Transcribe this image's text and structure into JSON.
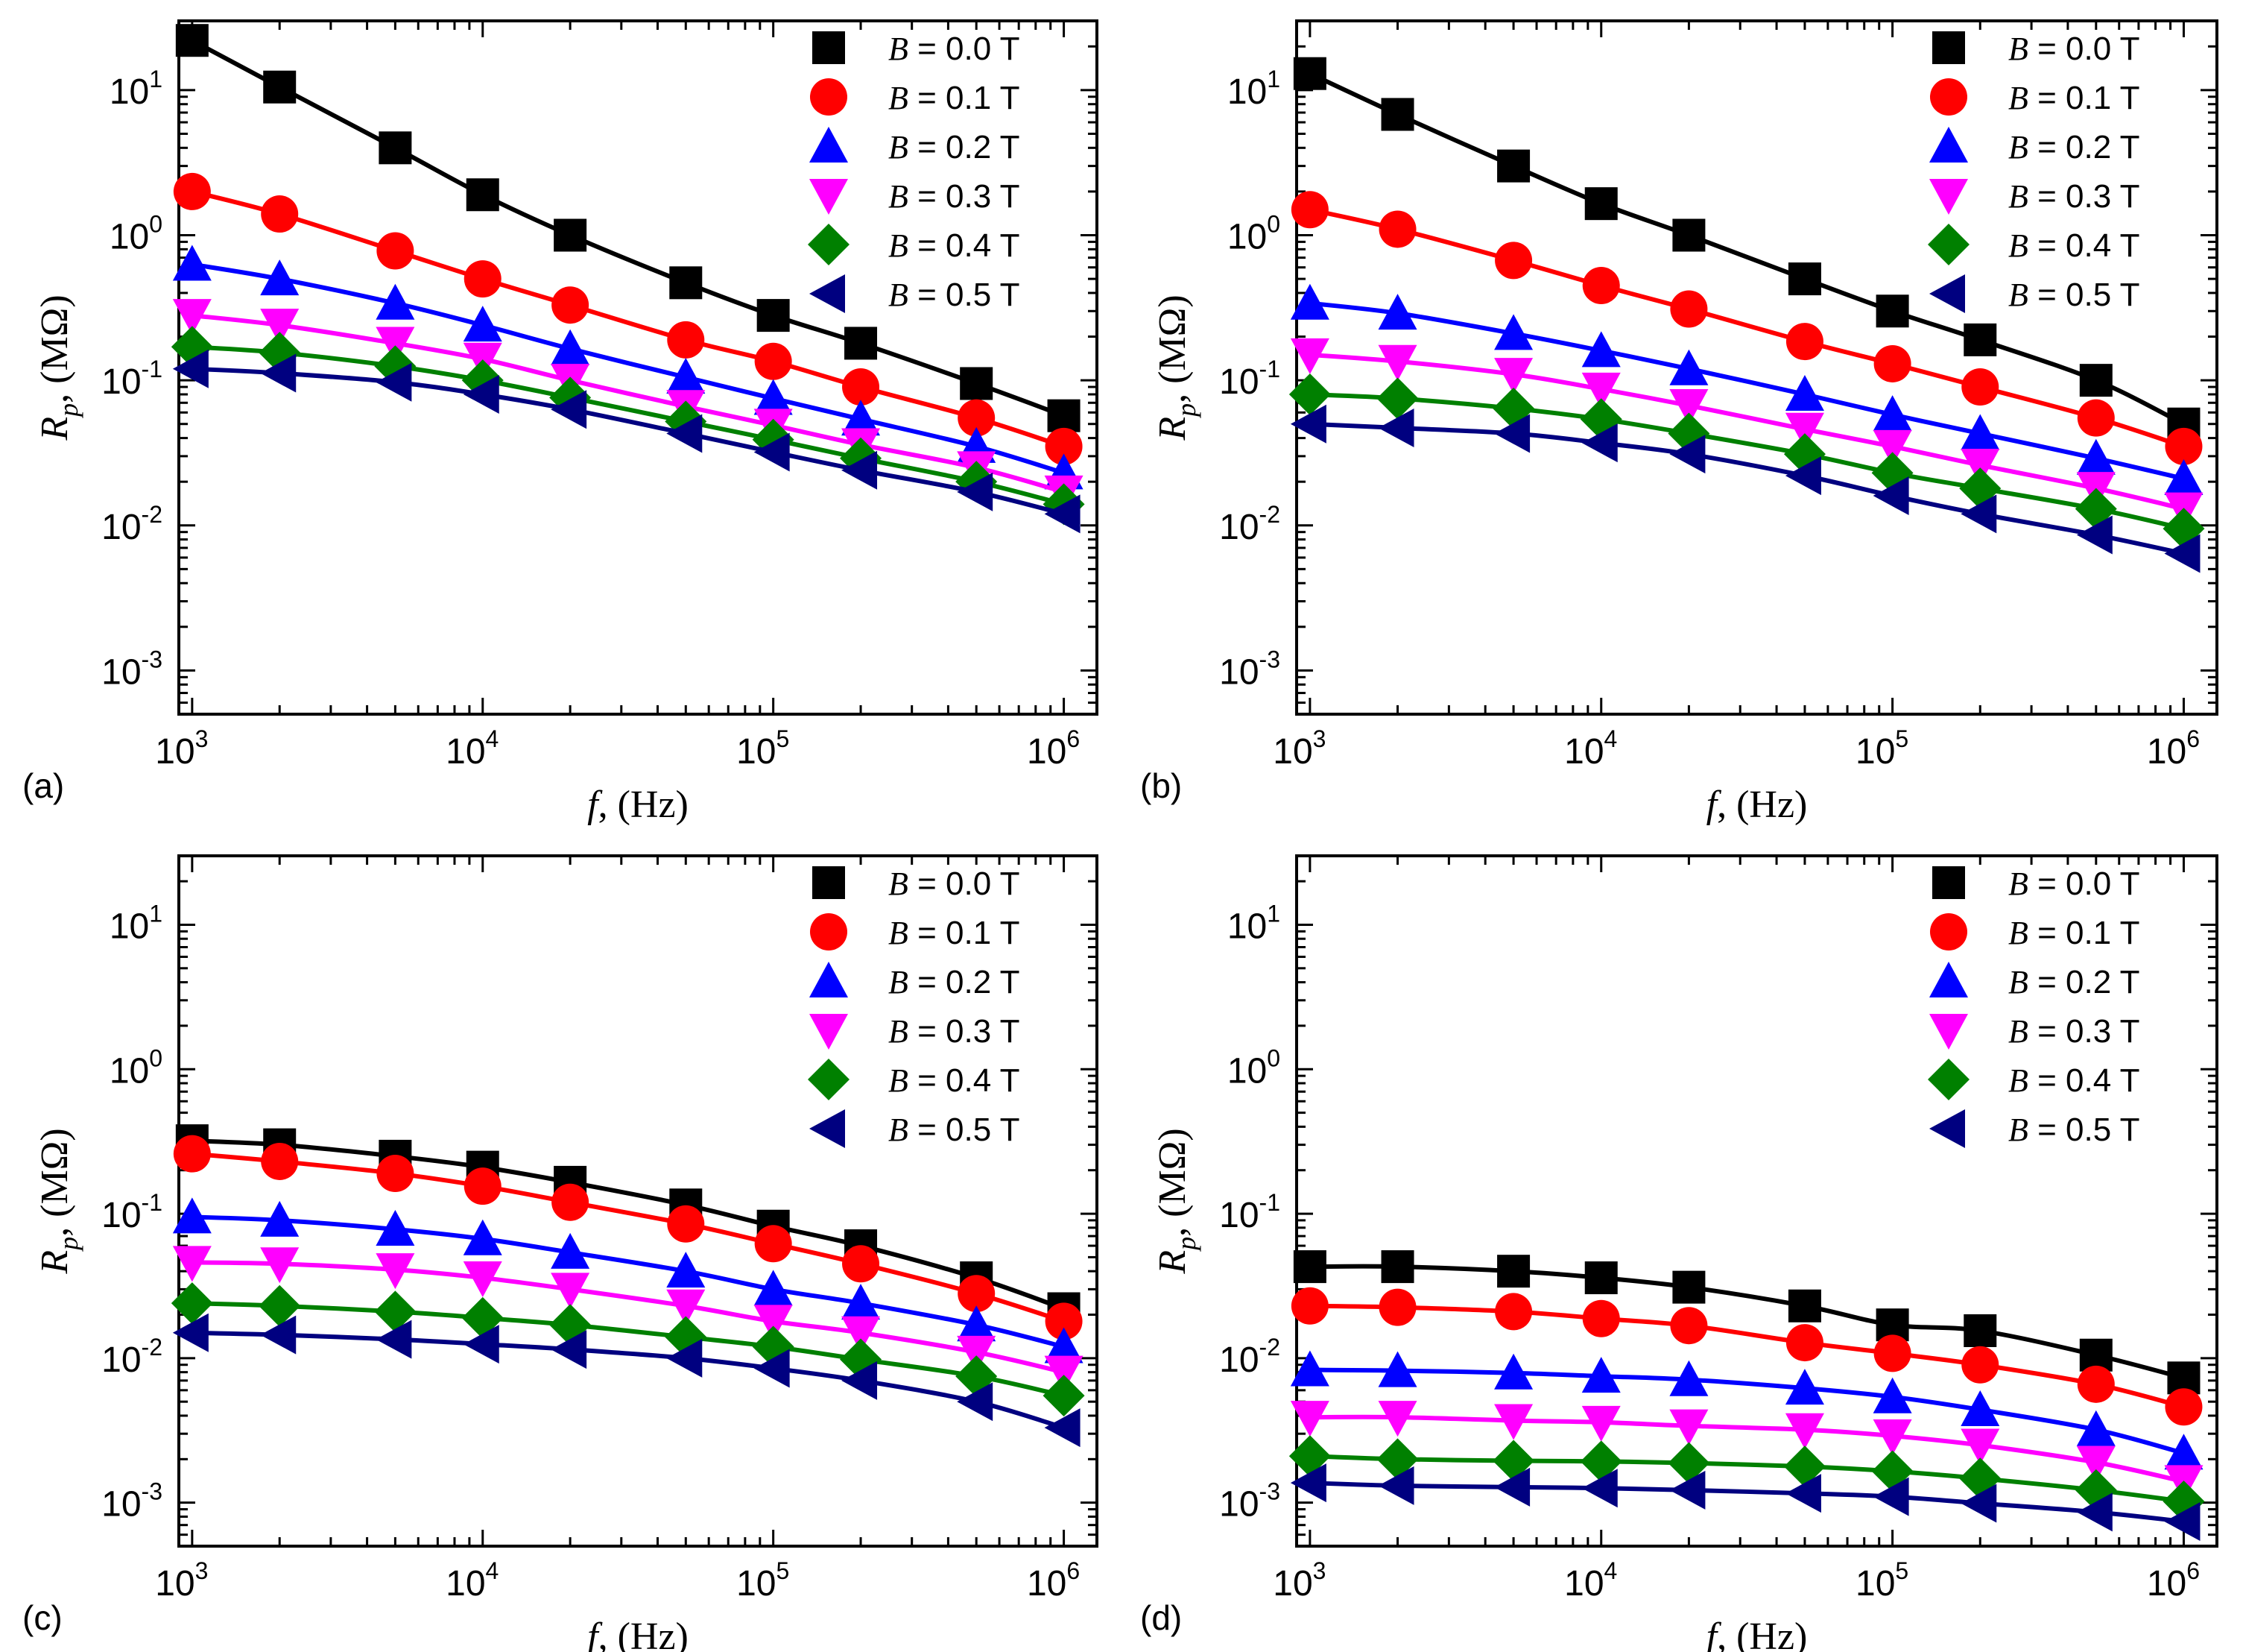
{
  "chart_data": [
    {
      "type": "line",
      "panel_label": "(a)",
      "xlabel_symbol": "f",
      "xlabel_unit": ", (Hz)",
      "ylabel_symbol": "R",
      "ylabel_sub": "p",
      "ylabel_unit": ", (MΩ)",
      "x_scale": "log",
      "y_scale": "log",
      "xlim": [
        900,
        1300000
      ],
      "ylim": [
        0.0005,
        30
      ],
      "x_ticks": [
        {
          "base": "10",
          "exp": "3"
        },
        {
          "base": "10",
          "exp": "4"
        },
        {
          "base": "10",
          "exp": "5"
        },
        {
          "base": "10",
          "exp": "6"
        }
      ],
      "y_ticks": [
        {
          "base": "10",
          "exp": "-3"
        },
        {
          "base": "10",
          "exp": "-2"
        },
        {
          "base": "10",
          "exp": "-1"
        },
        {
          "base": "10",
          "exp": "0"
        },
        {
          "base": "10",
          "exp": "1"
        }
      ],
      "legend_position": "top-right",
      "x": [
        1000,
        2000,
        5000,
        10000,
        20000,
        50000,
        100000,
        200000,
        500000,
        1000000
      ],
      "series": [
        {
          "name": "B = 0.0 T",
          "b_symbol": "B",
          "b_value": " = 0.0 T",
          "marker": "square",
          "color": "#000000",
          "values": [
            22,
            10.5,
            4.0,
            1.9,
            1.0,
            0.47,
            0.28,
            0.18,
            0.095,
            0.057
          ]
        },
        {
          "name": "B = 0.1 T",
          "b_symbol": "B",
          "b_value": " = 0.1 T",
          "marker": "circle",
          "color": "#ff0000",
          "values": [
            2.0,
            1.4,
            0.78,
            0.5,
            0.33,
            0.19,
            0.135,
            0.09,
            0.055,
            0.035
          ]
        },
        {
          "name": "B = 0.2 T",
          "b_symbol": "B",
          "b_value": " = 0.2 T",
          "marker": "triangle-up",
          "color": "#0000ff",
          "values": [
            0.63,
            0.5,
            0.34,
            0.24,
            0.165,
            0.105,
            0.075,
            0.054,
            0.035,
            0.023
          ]
        },
        {
          "name": "B = 0.3 T",
          "b_symbol": "B",
          "b_value": " = 0.3 T",
          "marker": "triangle-down",
          "color": "#ff00ff",
          "values": [
            0.28,
            0.24,
            0.18,
            0.14,
            0.1,
            0.066,
            0.049,
            0.036,
            0.025,
            0.017
          ]
        },
        {
          "name": "B = 0.4 T",
          "b_symbol": "B",
          "b_value": " = 0.4 T",
          "marker": "diamond",
          "color": "#008000",
          "values": [
            0.17,
            0.155,
            0.125,
            0.1,
            0.076,
            0.052,
            0.039,
            0.029,
            0.02,
            0.014
          ]
        },
        {
          "name": "B = 0.5 T",
          "b_symbol": "B",
          "b_value": " = 0.5 T",
          "marker": "triangle-left",
          "color": "#000080",
          "values": [
            0.12,
            0.112,
            0.097,
            0.08,
            0.063,
            0.043,
            0.032,
            0.024,
            0.017,
            0.012
          ]
        }
      ]
    },
    {
      "type": "line",
      "panel_label": "(b)",
      "xlabel_symbol": "f",
      "xlabel_unit": ", (Hz)",
      "ylabel_symbol": "R",
      "ylabel_sub": "p",
      "ylabel_unit": ", (MΩ)",
      "x_scale": "log",
      "y_scale": "log",
      "xlim": [
        900,
        1300000
      ],
      "ylim": [
        0.0005,
        30
      ],
      "x_ticks": [
        {
          "base": "10",
          "exp": "3"
        },
        {
          "base": "10",
          "exp": "4"
        },
        {
          "base": "10",
          "exp": "5"
        },
        {
          "base": "10",
          "exp": "6"
        }
      ],
      "y_ticks": [
        {
          "base": "10",
          "exp": "-3"
        },
        {
          "base": "10",
          "exp": "-2"
        },
        {
          "base": "10",
          "exp": "-1"
        },
        {
          "base": "10",
          "exp": "0"
        },
        {
          "base": "10",
          "exp": "1"
        }
      ],
      "legend_position": "top-right",
      "x": [
        1000,
        2000,
        5000,
        10000,
        20000,
        50000,
        100000,
        200000,
        500000,
        1000000
      ],
      "series": [
        {
          "name": "B = 0.0 T",
          "b_symbol": "B",
          "b_value": " = 0.0 T",
          "marker": "square",
          "color": "#000000",
          "values": [
            13,
            6.8,
            3.0,
            1.65,
            1.0,
            0.5,
            0.3,
            0.19,
            0.1,
            0.05
          ]
        },
        {
          "name": "B = 0.1 T",
          "b_symbol": "B",
          "b_value": " = 0.1 T",
          "marker": "circle",
          "color": "#ff0000",
          "values": [
            1.5,
            1.1,
            0.67,
            0.45,
            0.31,
            0.185,
            0.13,
            0.09,
            0.055,
            0.035
          ]
        },
        {
          "name": "B = 0.2 T",
          "b_symbol": "B",
          "b_value": " = 0.2 T",
          "marker": "triangle-up",
          "color": "#0000ff",
          "values": [
            0.34,
            0.29,
            0.21,
            0.16,
            0.12,
            0.08,
            0.058,
            0.043,
            0.029,
            0.021
          ]
        },
        {
          "name": "B = 0.3 T",
          "b_symbol": "B",
          "b_value": " = 0.3 T",
          "marker": "triangle-down",
          "color": "#ff00ff",
          "values": [
            0.15,
            0.135,
            0.11,
            0.087,
            0.067,
            0.046,
            0.035,
            0.026,
            0.018,
            0.013
          ]
        },
        {
          "name": "B = 0.4 T",
          "b_symbol": "B",
          "b_value": " = 0.4 T",
          "marker": "diamond",
          "color": "#008000",
          "values": [
            0.08,
            0.075,
            0.064,
            0.054,
            0.043,
            0.031,
            0.023,
            0.018,
            0.013,
            0.0095
          ]
        },
        {
          "name": "B = 0.5 T",
          "b_symbol": "B",
          "b_value": " = 0.5 T",
          "marker": "triangle-left",
          "color": "#000080",
          "values": [
            0.05,
            0.047,
            0.043,
            0.037,
            0.031,
            0.022,
            0.016,
            0.012,
            0.0086,
            0.0064
          ]
        }
      ]
    },
    {
      "type": "line",
      "panel_label": "(c)",
      "xlabel_symbol": "f",
      "xlabel_unit": ", (Hz)",
      "ylabel_symbol": "R",
      "ylabel_sub": "p",
      "ylabel_unit": ", (MΩ)",
      "x_scale": "log",
      "y_scale": "log",
      "xlim": [
        900,
        1300000
      ],
      "ylim": [
        0.0005,
        30
      ],
      "x_ticks": [
        {
          "base": "10",
          "exp": "3"
        },
        {
          "base": "10",
          "exp": "4"
        },
        {
          "base": "10",
          "exp": "5"
        },
        {
          "base": "10",
          "exp": "6"
        }
      ],
      "y_ticks": [
        {
          "base": "10",
          "exp": "-3"
        },
        {
          "base": "10",
          "exp": "-2"
        },
        {
          "base": "10",
          "exp": "-1"
        },
        {
          "base": "10",
          "exp": "0"
        },
        {
          "base": "10",
          "exp": "1"
        }
      ],
      "legend_position": "top-right",
      "x": [
        1000,
        2000,
        5000,
        10000,
        20000,
        50000,
        100000,
        200000,
        500000,
        1000000
      ],
      "series": [
        {
          "name": "B = 0.0 T",
          "b_symbol": "B",
          "b_value": " = 0.0 T",
          "marker": "square",
          "color": "#000000",
          "values": [
            0.32,
            0.3,
            0.25,
            0.21,
            0.165,
            0.115,
            0.082,
            0.06,
            0.036,
            0.022
          ]
        },
        {
          "name": "B = 0.1 T",
          "b_symbol": "B",
          "b_value": " = 0.1 T",
          "marker": "circle",
          "color": "#ff0000",
          "values": [
            0.26,
            0.23,
            0.19,
            0.155,
            0.12,
            0.085,
            0.062,
            0.045,
            0.028,
            0.018
          ]
        },
        {
          "name": "B = 0.2 T",
          "b_symbol": "B",
          "b_value": " = 0.2 T",
          "marker": "triangle-up",
          "color": "#0000ff",
          "values": [
            0.095,
            0.09,
            0.078,
            0.067,
            0.054,
            0.04,
            0.03,
            0.024,
            0.017,
            0.012
          ]
        },
        {
          "name": "B = 0.3 T",
          "b_symbol": "B",
          "b_value": " = 0.3 T",
          "marker": "triangle-down",
          "color": "#ff00ff",
          "values": [
            0.046,
            0.045,
            0.041,
            0.036,
            0.03,
            0.023,
            0.018,
            0.015,
            0.011,
            0.008
          ]
        },
        {
          "name": "B = 0.4 T",
          "b_symbol": "B",
          "b_value": " = 0.4 T",
          "marker": "diamond",
          "color": "#008000",
          "values": [
            0.024,
            0.023,
            0.021,
            0.019,
            0.017,
            0.014,
            0.012,
            0.0098,
            0.0075,
            0.0055
          ]
        },
        {
          "name": "B = 0.5 T",
          "b_symbol": "B",
          "b_value": " = 0.5 T",
          "marker": "triangle-left",
          "color": "#000080",
          "values": [
            0.015,
            0.0145,
            0.0135,
            0.0125,
            0.0115,
            0.01,
            0.0085,
            0.007,
            0.005,
            0.0033
          ]
        }
      ]
    },
    {
      "type": "line",
      "panel_label": "(d)",
      "xlabel_symbol": "f",
      "xlabel_unit": ", (Hz)",
      "ylabel_symbol": "R",
      "ylabel_sub": "p",
      "ylabel_unit": ", (MΩ)",
      "x_scale": "log",
      "y_scale": "log",
      "xlim": [
        900,
        1300000
      ],
      "ylim": [
        0.0005,
        30
      ],
      "x_ticks": [
        {
          "base": "10",
          "exp": "3"
        },
        {
          "base": "10",
          "exp": "4"
        },
        {
          "base": "10",
          "exp": "5"
        },
        {
          "base": "10",
          "exp": "6"
        }
      ],
      "y_ticks": [
        {
          "base": "10",
          "exp": "-3"
        },
        {
          "base": "10",
          "exp": "-2"
        },
        {
          "base": "10",
          "exp": "-1"
        },
        {
          "base": "10",
          "exp": "0"
        },
        {
          "base": "10",
          "exp": "1"
        }
      ],
      "legend_position": "top-right",
      "x": [
        1000,
        2000,
        5000,
        10000,
        20000,
        50000,
        100000,
        200000,
        500000,
        1000000
      ],
      "series": [
        {
          "name": "B = 0.0 T",
          "b_symbol": "B",
          "b_value": " = 0.0 T",
          "marker": "square",
          "color": "#000000",
          "values": [
            0.043,
            0.043,
            0.04,
            0.036,
            0.031,
            0.023,
            0.017,
            0.0155,
            0.0105,
            0.0073
          ]
        },
        {
          "name": "B = 0.1 T",
          "b_symbol": "B",
          "b_value": " = 0.1 T",
          "marker": "circle",
          "color": "#ff0000",
          "values": [
            0.023,
            0.0225,
            0.021,
            0.0188,
            0.0168,
            0.0128,
            0.0108,
            0.009,
            0.0066,
            0.0046
          ]
        },
        {
          "name": "B = 0.2 T",
          "b_symbol": "B",
          "b_value": " = 0.2 T",
          "marker": "triangle-up",
          "color": "#0000ff",
          "values": [
            0.0083,
            0.0082,
            0.0079,
            0.0075,
            0.0071,
            0.0062,
            0.0054,
            0.0044,
            0.0032,
            0.0022
          ]
        },
        {
          "name": "B = 0.3 T",
          "b_symbol": "B",
          "b_value": " = 0.3 T",
          "marker": "triangle-down",
          "color": "#ff00ff",
          "values": [
            0.0039,
            0.0039,
            0.0037,
            0.0036,
            0.0034,
            0.0032,
            0.0029,
            0.0025,
            0.0019,
            0.0014
          ]
        },
        {
          "name": "B = 0.4 T",
          "b_symbol": "B",
          "b_value": " = 0.4 T",
          "marker": "diamond",
          "color": "#008000",
          "values": [
            0.0021,
            0.002,
            0.00195,
            0.00193,
            0.00188,
            0.00178,
            0.00165,
            0.00147,
            0.00122,
            0.00102
          ]
        },
        {
          "name": "B = 0.5 T",
          "b_symbol": "B",
          "b_value": " = 0.5 T",
          "marker": "triangle-left",
          "color": "#000080",
          "values": [
            0.00137,
            0.00131,
            0.00128,
            0.00126,
            0.00122,
            0.00116,
            0.0011,
            0.00099,
            0.00086,
            0.00074
          ]
        }
      ]
    }
  ]
}
